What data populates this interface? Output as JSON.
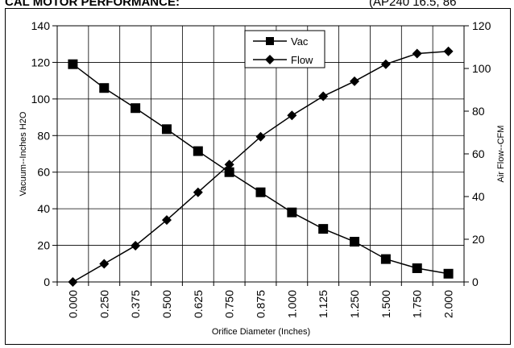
{
  "header": {
    "left_text": "CAL MOTOR PERFORMANCE:",
    "right_text": "(AP240 16.5, 86"
  },
  "chart_data": {
    "type": "line",
    "categories": [
      "0.000",
      "0.250",
      "0.375",
      "0.500",
      "0.625",
      "0.750",
      "0.875",
      "1.000",
      "1.125",
      "1.250",
      "1.500",
      "1.750",
      "2.000"
    ],
    "series": [
      {
        "name": "Vac",
        "axis": "left",
        "marker": "square",
        "values": [
          119,
          106,
          95,
          83.5,
          71.5,
          60,
          49,
          38,
          29,
          22,
          12.5,
          7.5,
          4.5
        ]
      },
      {
        "name": "Flow",
        "axis": "right",
        "marker": "diamond",
        "values": [
          0,
          8.5,
          17,
          29,
          42,
          55,
          68,
          78,
          87,
          94,
          102,
          107,
          108
        ]
      }
    ],
    "y_left": {
      "label": "Vacuum--Inches H2O",
      "lim": [
        0,
        140
      ],
      "ticks": [
        0,
        20,
        40,
        60,
        80,
        100,
        120,
        140
      ]
    },
    "y_right": {
      "label": "Air Flow--CFM",
      "lim": [
        0,
        120
      ],
      "ticks": [
        0,
        20,
        40,
        60,
        80,
        100,
        120
      ]
    },
    "xlabel": "Orifice Diameter (Inches)",
    "grid": true,
    "legend_position": "top-center"
  }
}
